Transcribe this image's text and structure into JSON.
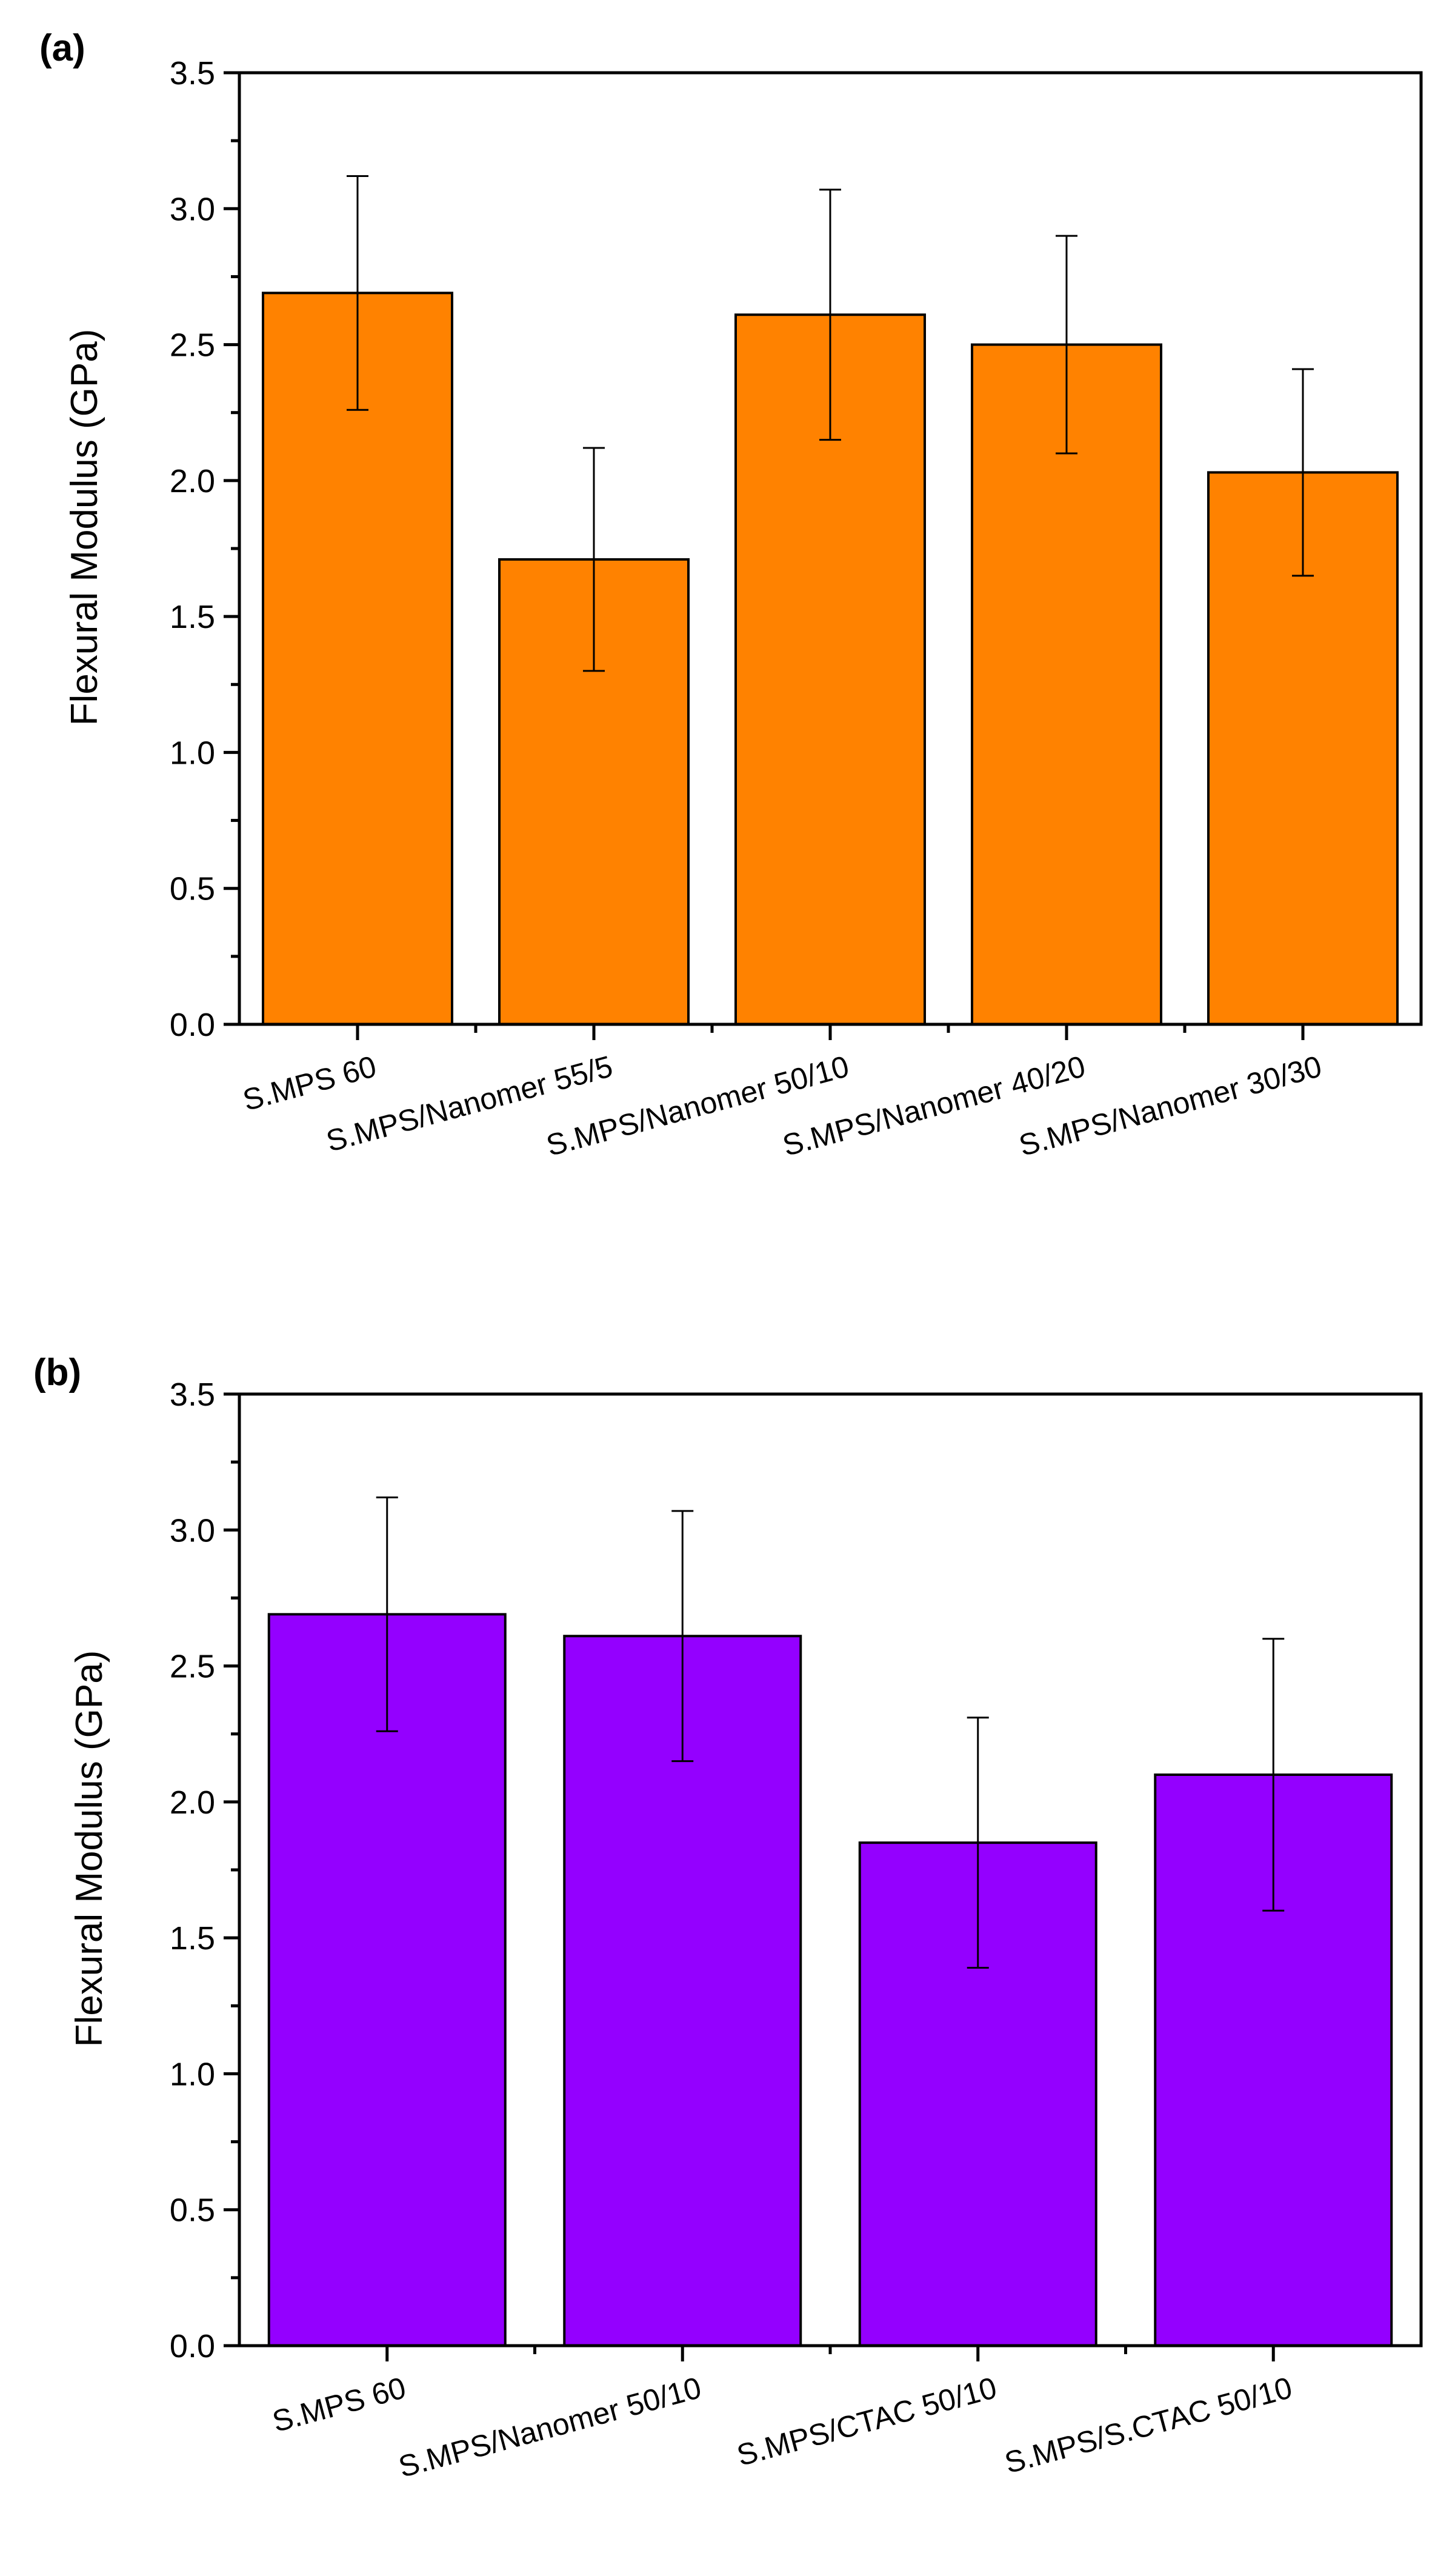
{
  "chart_data": [
    {
      "panel": "(a)",
      "type": "bar",
      "categories": [
        "S.MPS 60",
        "S.MPS/Nanomer 55/5",
        "S.MPS/Nanomer 50/10",
        "S.MPS/Nanomer 40/20",
        "S.MPS/Nanomer 30/30"
      ],
      "values": [
        2.69,
        1.71,
        2.61,
        2.5,
        2.03
      ],
      "errors": [
        0.43,
        0.41,
        0.46,
        0.4,
        0.38
      ],
      "title": "",
      "xlabel": "",
      "ylabel": "Flexural Modulus (GPa)",
      "ylim": [
        0,
        3.5
      ],
      "yticks": [
        0.0,
        0.5,
        1.0,
        1.5,
        2.0,
        2.5,
        3.0,
        3.5
      ],
      "ytick_labels": [
        "0.0",
        "0.5",
        "1.0",
        "1.5",
        "2.0",
        "2.5",
        "3.0",
        "3.5"
      ],
      "color": "#FF8200",
      "grid": false
    },
    {
      "panel": "(b)",
      "type": "bar",
      "categories": [
        "S.MPS 60",
        "S.MPS/Nanomer 50/10",
        "S.MPS/CTAC 50/10",
        "S.MPS/S.CTAC 50/10"
      ],
      "values": [
        2.69,
        2.61,
        1.85,
        2.1
      ],
      "errors": [
        0.43,
        0.46,
        0.46,
        0.5
      ],
      "title": "",
      "xlabel": "",
      "ylabel": "Flexural Modulus (GPa)",
      "ylim": [
        0,
        3.5
      ],
      "yticks": [
        0.0,
        0.5,
        1.0,
        1.5,
        2.0,
        2.5,
        3.0,
        3.5
      ],
      "ytick_labels": [
        "0.0",
        "0.5",
        "1.0",
        "1.5",
        "2.0",
        "2.5",
        "3.0",
        "3.5"
      ],
      "color": "#9400FF",
      "grid": false
    }
  ]
}
